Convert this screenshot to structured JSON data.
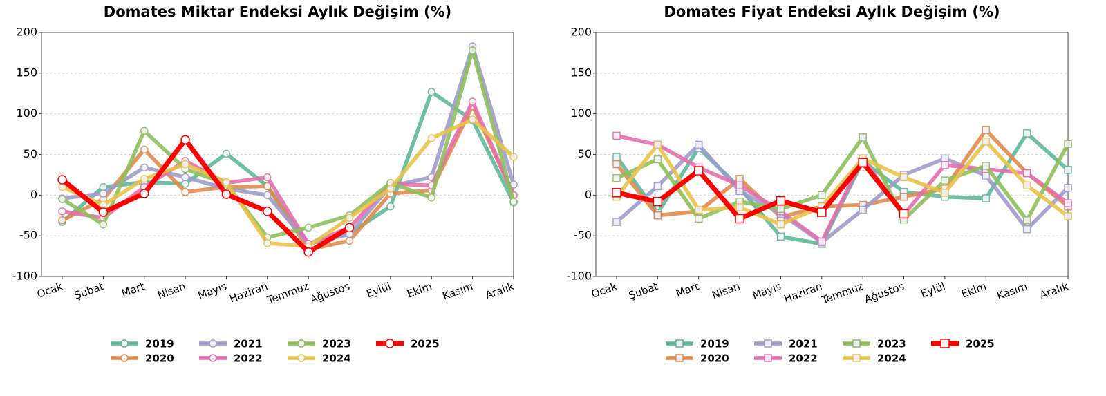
{
  "chart_data": [
    {
      "type": "line",
      "title": "Domates Miktar Endeksi Aylık Değişim (%)",
      "marker": "circle",
      "grid": true,
      "categories": [
        "Ocak",
        "Şubat",
        "Mart",
        "Nisan",
        "Mayıs",
        "Haziran",
        "Temmuz",
        "Ağustos",
        "Eylül",
        "Ekim",
        "Kasım",
        "Aralık"
      ],
      "ylim": [
        -100,
        200
      ],
      "yticks": [
        -100,
        -50,
        0,
        50,
        100,
        150,
        200
      ],
      "series": [
        {
          "name": "2019",
          "color": "#5fb99b",
          "values": [
            -33,
            10,
            16,
            14,
            51,
            11,
            -60,
            -47,
            -14,
            127,
            92,
            -9
          ]
        },
        {
          "name": "2020",
          "color": "#e08b4c",
          "values": [
            -31,
            -5,
            56,
            4,
            10,
            11,
            -67,
            -56,
            2,
            6,
            110,
            0
          ]
        },
        {
          "name": "2021",
          "color": "#9f9ccc",
          "values": [
            -4,
            2,
            34,
            22,
            8,
            0,
            -60,
            -48,
            11,
            22,
            183,
            13
          ]
        },
        {
          "name": "2022",
          "color": "#e46fae",
          "values": [
            -20,
            -28,
            10,
            42,
            15,
            22,
            -60,
            -40,
            14,
            12,
            115,
            0
          ]
        },
        {
          "name": "2023",
          "color": "#8fbf5d",
          "values": [
            -5,
            -36,
            79,
            32,
            14,
            -52,
            -40,
            -25,
            15,
            -3,
            178,
            -8
          ]
        },
        {
          "name": "2024",
          "color": "#e9c34b",
          "values": [
            10,
            -12,
            20,
            38,
            16,
            -59,
            -63,
            -28,
            8,
            70,
            93,
            47
          ]
        },
        {
          "name": "2025",
          "color": "#ff0000",
          "values": [
            19,
            -21,
            2,
            68,
            1,
            -20,
            -70,
            -40,
            null,
            null,
            null,
            null
          ]
        }
      ]
    },
    {
      "type": "line",
      "title": "Domates Fiyat Endeksi Aylık Değişim (%)",
      "marker": "square",
      "grid": true,
      "categories": [
        "Ocak",
        "Şubat",
        "Mart",
        "Nisan",
        "Mayıs",
        "Haziran",
        "Temmuz",
        "Ağustos",
        "Eylül",
        "Ekim",
        "Kasım",
        "Aralık"
      ],
      "ylim": [
        -100,
        200
      ],
      "yticks": [
        -100,
        -50,
        0,
        50,
        100,
        150,
        200
      ],
      "series": [
        {
          "name": "2019",
          "color": "#5fb99b",
          "values": [
            47,
            -22,
            58,
            9,
            -51,
            -60,
            42,
            4,
            -2,
            -4,
            76,
            31
          ]
        },
        {
          "name": "2020",
          "color": "#e08b4c",
          "values": [
            38,
            -25,
            -20,
            20,
            -27,
            -14,
            -12,
            -2,
            8,
            80,
            27,
            -14
          ]
        },
        {
          "name": "2021",
          "color": "#9f9ccc",
          "values": [
            -33,
            11,
            62,
            5,
            -23,
            -58,
            -18,
            25,
            45,
            24,
            -42,
            9
          ]
        },
        {
          "name": "2022",
          "color": "#e46fae",
          "values": [
            73,
            62,
            34,
            12,
            -20,
            -57,
            45,
            -24,
            37,
            32,
            27,
            -10
          ]
        },
        {
          "name": "2023",
          "color": "#8fbf5d",
          "values": [
            21,
            44,
            -29,
            -8,
            -17,
            0,
            71,
            -30,
            18,
            36,
            -31,
            63
          ]
        },
        {
          "name": "2024",
          "color": "#e9c34b",
          "values": [
            -2,
            62,
            -18,
            -15,
            -36,
            -14,
            45,
            22,
            3,
            66,
            12,
            -26
          ]
        },
        {
          "name": "2025",
          "color": "#ff0000",
          "values": [
            3,
            -8,
            30,
            -29,
            -7,
            -21,
            40,
            -23,
            null,
            null,
            null,
            null
          ]
        }
      ]
    }
  ]
}
